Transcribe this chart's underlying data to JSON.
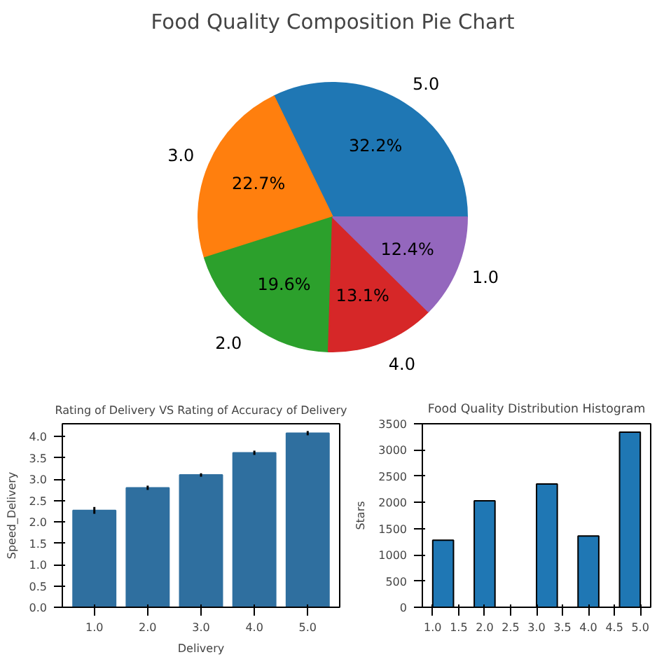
{
  "chart_data": [
    {
      "type": "pie",
      "title": "Food Quality Composition Pie Chart",
      "categories": [
        "5.0",
        "3.0",
        "2.0",
        "4.0",
        "1.0"
      ],
      "values": [
        32.2,
        22.7,
        19.6,
        13.1,
        12.4
      ],
      "colors": [
        "#1f77b4",
        "#ff7f0e",
        "#2ca02c",
        "#d62728",
        "#9467bd"
      ],
      "value_labels": [
        "32.2%",
        "22.7%",
        "19.6%",
        "13.1%",
        "12.4%"
      ]
    },
    {
      "type": "bar",
      "title": "Rating of Delivery VS Rating of Accuracy of Delivery",
      "xlabel": "Delivery",
      "ylabel": "Speed_Delivery",
      "categories": [
        "1.0",
        "2.0",
        "3.0",
        "4.0",
        "5.0"
      ],
      "values": [
        2.27,
        2.8,
        3.1,
        3.62,
        4.08
      ],
      "errors": [
        0.08,
        0.05,
        0.04,
        0.05,
        0.05
      ],
      "color": "#2f6f9f",
      "ylim": [
        0,
        4.3
      ],
      "yticks": [
        {
          "value": 0,
          "label": "0.0"
        },
        {
          "value": 0.5,
          "label": "0.5"
        },
        {
          "value": 1,
          "label": "1.0"
        },
        {
          "value": 1.5,
          "label": "1.5"
        },
        {
          "value": 2,
          "label": "2.0"
        },
        {
          "value": 2.5,
          "label": "2.5"
        },
        {
          "value": 3,
          "label": "3.0"
        },
        {
          "value": 3.5,
          "label": "3.5"
        },
        {
          "value": 4,
          "label": "4.0"
        }
      ]
    },
    {
      "type": "histogram",
      "title": "Food Quality Distribution Histogram",
      "ylabel": "Stars",
      "bins": [
        1.0,
        1.4,
        1.8,
        2.2,
        2.6,
        3.0,
        3.4,
        3.8,
        4.2,
        4.6,
        5.0
      ],
      "values": [
        1280,
        0,
        2030,
        0,
        0,
        2350,
        0,
        1360,
        0,
        3340
      ],
      "color": "#1f77b4",
      "xlim": [
        0.8,
        5.2
      ],
      "xticks": [
        {
          "value": 1,
          "label": "1.0"
        },
        {
          "value": 1.5,
          "label": "1.5"
        },
        {
          "value": 2,
          "label": "2.0"
        },
        {
          "value": 2.5,
          "label": "2.5"
        },
        {
          "value": 3,
          "label": "3.0"
        },
        {
          "value": 3.5,
          "label": "3.5"
        },
        {
          "value": 4,
          "label": "4.0"
        },
        {
          "value": 4.5,
          "label": "4.5"
        },
        {
          "value": 5,
          "label": "5.0"
        }
      ],
      "ylim": [
        0,
        3500
      ],
      "yticks": [
        0,
        500,
        1000,
        1500,
        2000,
        2500,
        3000,
        3500
      ]
    }
  ]
}
